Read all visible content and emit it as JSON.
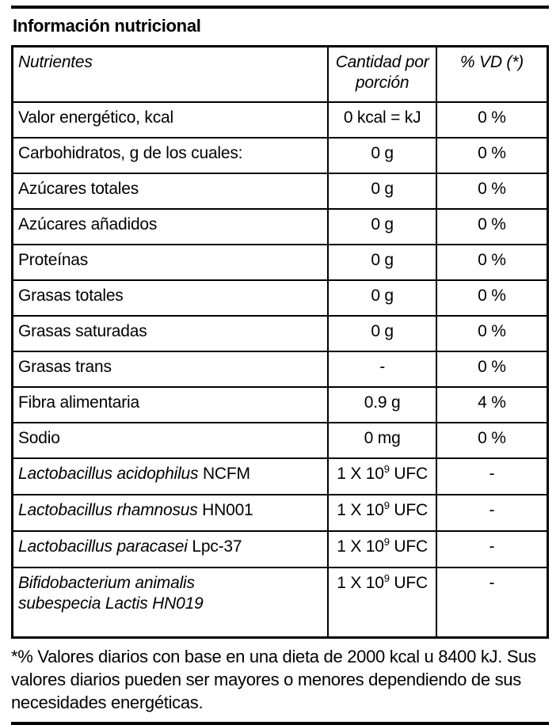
{
  "page": {
    "title": "Información nutricional",
    "footnote": "*% Valores diarios con base en una dieta de 2000 kcal u 8400 kJ. Sus valores diarios pueden ser mayores o menores dependiendo de sus necesidades energéticas."
  },
  "table": {
    "columns": [
      {
        "label": "Nutrientes"
      },
      {
        "label": "Cantidad por porción"
      },
      {
        "label": "% VD (*)"
      }
    ],
    "rows": [
      {
        "name": [
          {
            "t": "Valor energético, kcal"
          }
        ],
        "amount": [
          {
            "t": "0 kcal = kJ"
          }
        ],
        "vd": [
          {
            "t": "0 %"
          }
        ]
      },
      {
        "name": [
          {
            "t": "Carbohidratos, g de los cuales:"
          }
        ],
        "amount": [
          {
            "t": "0 g"
          }
        ],
        "vd": [
          {
            "t": "0 %"
          }
        ]
      },
      {
        "name": [
          {
            "t": "Azúcares totales"
          }
        ],
        "amount": [
          {
            "t": "0 g"
          }
        ],
        "vd": [
          {
            "t": "0 %"
          }
        ]
      },
      {
        "name": [
          {
            "t": "Azúcares añadidos"
          }
        ],
        "amount": [
          {
            "t": "0 g"
          }
        ],
        "vd": [
          {
            "t": "0 %"
          }
        ]
      },
      {
        "name": [
          {
            "t": "Proteínas"
          }
        ],
        "amount": [
          {
            "t": "0 g"
          }
        ],
        "vd": [
          {
            "t": "0 %"
          }
        ]
      },
      {
        "name": [
          {
            "t": "Grasas totales"
          }
        ],
        "amount": [
          {
            "t": "0 g"
          }
        ],
        "vd": [
          {
            "t": "0 %"
          }
        ]
      },
      {
        "name": [
          {
            "t": "Grasas saturadas"
          }
        ],
        "amount": [
          {
            "t": "0 g"
          }
        ],
        "vd": [
          {
            "t": "0 %"
          }
        ]
      },
      {
        "name": [
          {
            "t": "Grasas trans"
          }
        ],
        "amount": [
          {
            "t": "-"
          }
        ],
        "vd": [
          {
            "t": "0 %"
          }
        ]
      },
      {
        "name": [
          {
            "t": "Fibra alimentaria"
          }
        ],
        "amount": [
          {
            "t": "0.9 g"
          }
        ],
        "vd": [
          {
            "t": "4 %"
          }
        ]
      },
      {
        "name": [
          {
            "t": "Sodio"
          }
        ],
        "amount": [
          {
            "t": "0 mg"
          }
        ],
        "vd": [
          {
            "t": "0 %"
          }
        ]
      },
      {
        "name": [
          {
            "t": "Lactobacillus acidophilus",
            "s": "italic"
          },
          {
            "t": " NCFM"
          }
        ],
        "amount": [
          {
            "t": "1 X 10"
          },
          {
            "t": "9",
            "s": "sup"
          },
          {
            "t": " UFC"
          }
        ],
        "vd": [
          {
            "t": "-"
          }
        ]
      },
      {
        "name": [
          {
            "t": "Lactobacillus rhamnosus",
            "s": "italic"
          },
          {
            "t": " HN001"
          }
        ],
        "amount": [
          {
            "t": "1 X 10"
          },
          {
            "t": "9",
            "s": "sup"
          },
          {
            "t": " UFC"
          }
        ],
        "vd": [
          {
            "t": "-"
          }
        ]
      },
      {
        "name": [
          {
            "t": "Lactobacillus paracasei",
            "s": "italic"
          },
          {
            "t": " Lpc-37"
          }
        ],
        "amount": [
          {
            "t": "1 X 10"
          },
          {
            "t": "9",
            "s": "sup"
          },
          {
            "t": " UFC"
          }
        ],
        "vd": [
          {
            "t": "-"
          }
        ]
      },
      {
        "name": [
          {
            "t": "Bifidobacterium animalis",
            "s": "italic"
          },
          {
            "br": true
          },
          {
            "t": "subespecia Lactis HN019",
            "s": "italic"
          }
        ],
        "amount": [
          {
            "t": "1 X 10"
          },
          {
            "t": "9",
            "s": "sup"
          },
          {
            "t": " UFC"
          }
        ],
        "vd": [
          {
            "t": "-"
          }
        ]
      }
    ]
  }
}
